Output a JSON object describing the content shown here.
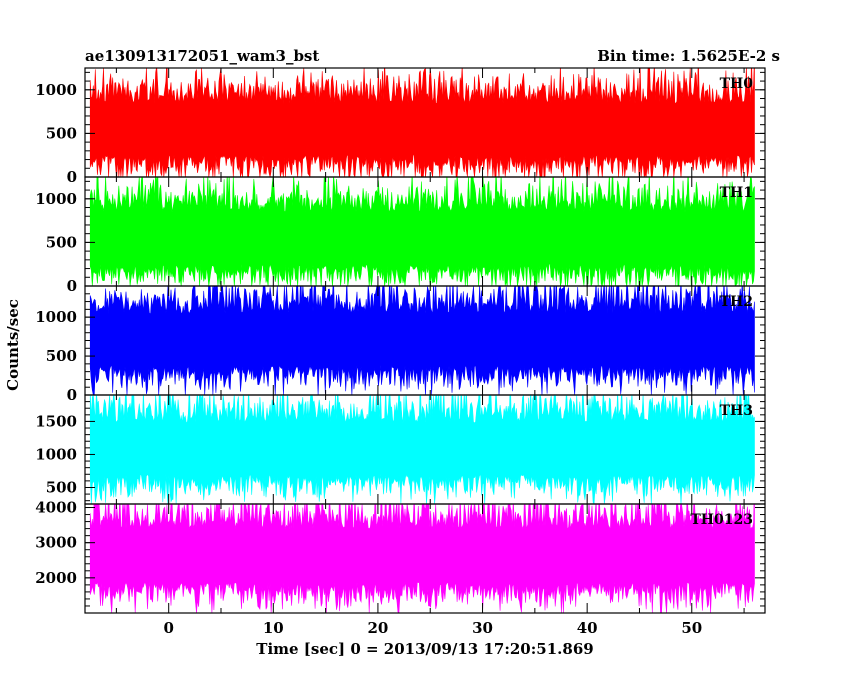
{
  "title_left": "ae130913172051_wam3_bst",
  "title_right": "Bin time: 1.5625E-2 s",
  "ylabel": "Counts/sec",
  "xlabel": "Time [sec] 0 = 2013/09/13 17:20:51.869",
  "chart_data": {
    "type": "line",
    "x_range": [
      -8,
      57
    ],
    "x_ticks": [
      0,
      10,
      20,
      30,
      40,
      50
    ],
    "x_tick_labels": [
      "0",
      "10",
      "20",
      "30",
      "40",
      "50"
    ],
    "x_data_range": [
      -7.5,
      56
    ],
    "bin_time_s": 0.015625,
    "panels": [
      {
        "name": "TH0",
        "color": "#ff0000",
        "ylim": [
          0,
          1250
        ],
        "y_ticks": [
          0,
          500,
          1000
        ],
        "y_tick_labels": [
          "0",
          "500",
          "1000"
        ],
        "mean": 520,
        "typical_min": 80,
        "typical_max": 1250
      },
      {
        "name": "TH1",
        "color": "#00ff00",
        "ylim": [
          0,
          1250
        ],
        "y_ticks": [
          0,
          500,
          1000
        ],
        "y_tick_labels": [
          "0",
          "500",
          "1000"
        ],
        "mean": 520,
        "typical_min": 60,
        "typical_max": 1250
      },
      {
        "name": "TH2",
        "color": "#0000ff",
        "ylim": [
          0,
          1400
        ],
        "y_ticks": [
          0,
          500,
          1000
        ],
        "y_tick_labels": [
          "0",
          "500",
          "1000"
        ],
        "mean": 680,
        "typical_min": 80,
        "typical_max": 1400
      },
      {
        "name": "TH3",
        "color": "#00ffff",
        "ylim": [
          250,
          1900
        ],
        "y_ticks": [
          500,
          1000,
          1500
        ],
        "y_tick_labels": [
          "500",
          "1000",
          "1500"
        ],
        "mean": 1050,
        "typical_min": 350,
        "typical_max": 1900
      },
      {
        "name": "TH0123",
        "color": "#ff00ff",
        "ylim": [
          1000,
          4100
        ],
        "y_ticks": [
          2000,
          3000,
          4000
        ],
        "y_tick_labels": [
          "2000",
          "3000",
          "4000"
        ],
        "mean": 2550,
        "typical_min": 1100,
        "typical_max": 4100
      }
    ]
  }
}
